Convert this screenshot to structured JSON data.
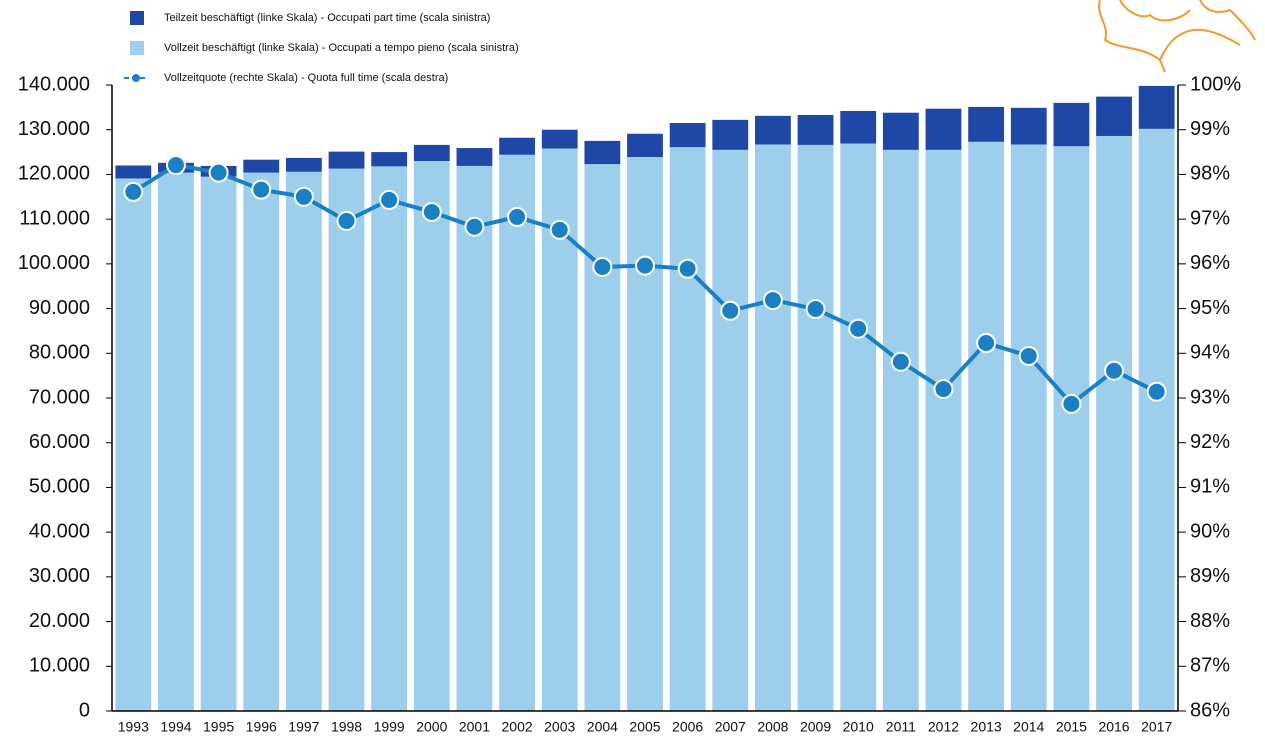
{
  "chart_data": {
    "type": "stacked-bar-line",
    "categories": [
      "1993",
      "1994",
      "1995",
      "1996",
      "1997",
      "1998",
      "1999",
      "2000",
      "2001",
      "2002",
      "2003",
      "2004",
      "2005",
      "2006",
      "2007",
      "2008",
      "2009",
      "2010",
      "2011",
      "2012",
      "2013",
      "2014",
      "2015",
      "2016",
      "2017"
    ],
    "series": [
      {
        "name": "Teilzeit beschäftigt (linke Skala) - Occupati part time (scala sinistra)",
        "color": "#1f48a6",
        "type": "bar",
        "values": [
          2900,
          2200,
          2400,
          2900,
          3100,
          3800,
          3200,
          3600,
          4000,
          3800,
          4200,
          5200,
          5200,
          5400,
          6700,
          6400,
          6700,
          7300,
          8300,
          9200,
          7800,
          8200,
          9700,
          8800,
          9600
        ]
      },
      {
        "name": "Vollzeit beschäftigt (linke Skala) - Occupati a tempo pieno (scala sinistra)",
        "color": "#9dcfec",
        "type": "bar",
        "values": [
          119100,
          120400,
          119500,
          120400,
          120600,
          121300,
          121800,
          123000,
          121900,
          124400,
          125800,
          122300,
          123900,
          126100,
          125500,
          126700,
          126600,
          126900,
          125500,
          125500,
          127300,
          126700,
          126300,
          128600,
          130200
        ]
      },
      {
        "name": "Vollzeitquote (rechte Skala) - Quota full time (scala destra)",
        "color": "#1a7fc4",
        "type": "line",
        "axis": "y2",
        "values": [
          97.61,
          98.21,
          98.04,
          97.66,
          97.5,
          96.96,
          97.43,
          97.16,
          96.83,
          97.05,
          96.76,
          95.93,
          95.96,
          95.89,
          94.95,
          95.19,
          94.99,
          94.55,
          93.81,
          93.2,
          94.23,
          93.94,
          92.87,
          93.61,
          93.14
        ]
      }
    ],
    "ylim": [
      0,
      140000
    ],
    "yticks": [
      0,
      {
        "value": 10000,
        "label": "10.000"
      },
      {
        "value": 20000,
        "label": "20.000"
      },
      {
        "value": 30000,
        "label": "30.000"
      },
      {
        "value": 40000,
        "label": "40.000"
      },
      {
        "value": 50000,
        "label": "50.000"
      },
      {
        "value": 60000,
        "label": "60.000"
      },
      {
        "value": 70000,
        "label": "70.000"
      },
      {
        "value": 80000,
        "label": "80.000"
      },
      {
        "value": 90000,
        "label": "90.000"
      },
      {
        "value": 100000,
        "label": "100.000"
      },
      {
        "value": 110000,
        "label": "110.000"
      },
      {
        "value": 120000,
        "label": "120.000"
      },
      {
        "value": 130000,
        "label": "130.000"
      },
      {
        "value": 140000,
        "label": "140.000"
      }
    ],
    "y2lim": [
      86,
      100
    ],
    "y2ticks": [
      {
        "value": 86,
        "label": "86%"
      },
      {
        "value": 87,
        "label": "87%"
      },
      {
        "value": 88,
        "label": "88%"
      },
      {
        "value": 89,
        "label": "89%"
      },
      {
        "value": 90,
        "label": "90%"
      },
      {
        "value": 91,
        "label": "91%"
      },
      {
        "value": 92,
        "label": "92%"
      },
      {
        "value": 93,
        "label": "93%"
      },
      {
        "value": 94,
        "label": "94%"
      },
      {
        "value": 95,
        "label": "95%"
      },
      {
        "value": 96,
        "label": "96%"
      },
      {
        "value": 97,
        "label": "97%"
      },
      {
        "value": 98,
        "label": "98%"
      },
      {
        "value": 99,
        "label": "99%"
      },
      {
        "value": 100,
        "label": "100%"
      }
    ],
    "legend": "top-left"
  }
}
